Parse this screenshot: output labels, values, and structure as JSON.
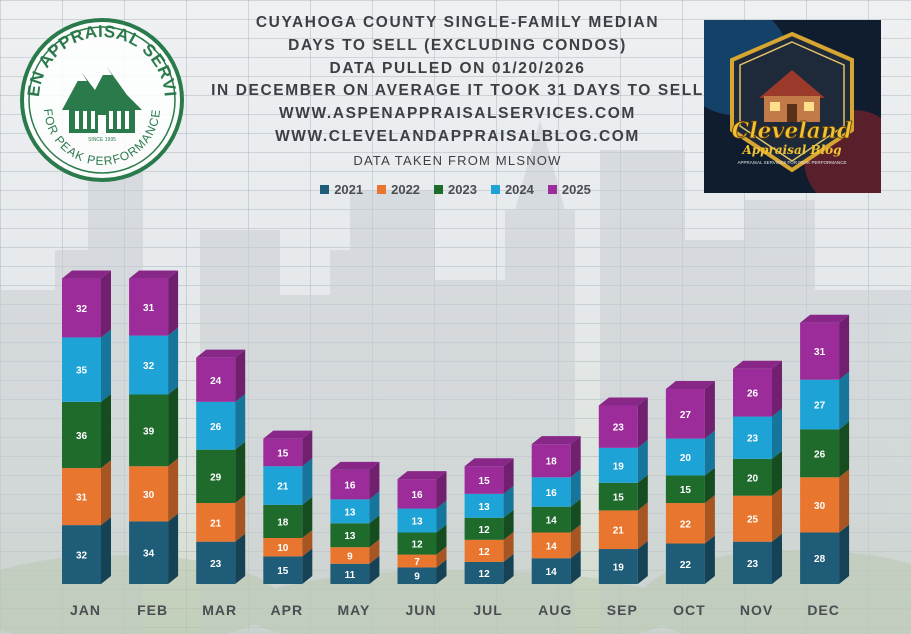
{
  "title_lines": [
    "CUYAHOGA COUNTY SINGLE-FAMILY MEDIAN",
    "DAYS TO SELL (EXCLUDING CONDOS)",
    "DATA PULLED ON 01/20/2026",
    "IN DECEMBER ON AVERAGE IT TOOK 31 DAYS TO SELL",
    "WWW.ASPENAPPRAISALSERVICES.COM",
    "WWW.CLEVELANDAPPRAISALBLOG.COM"
  ],
  "source_note": "DATA TAKEN FROM MLSNOW",
  "seal": {
    "top_text": "ASPEN APPRAISAL SERVICES",
    "bottom_text": "FOR PEAK PERFORMANCE",
    "small_text": "SINCE 1995"
  },
  "badge": {
    "line1": "Cleveland",
    "line2": "Appraisal Blog",
    "line3": "APPRAISAL SERVICES FOR PEAK PERFORMANCE"
  },
  "chart_data": {
    "type": "bar",
    "stacked": true,
    "categories": [
      "JAN",
      "FEB",
      "MAR",
      "APR",
      "MAY",
      "JUN",
      "JUL",
      "AUG",
      "SEP",
      "OCT",
      "NOV",
      "DEC"
    ],
    "series": [
      {
        "name": "2021",
        "color": "#1f5c78",
        "values": [
          32,
          34,
          23,
          15,
          11,
          9,
          12,
          14,
          19,
          22,
          23,
          28
        ]
      },
      {
        "name": "2022",
        "color": "#e8762f",
        "values": [
          31,
          30,
          21,
          10,
          9,
          7,
          12,
          14,
          21,
          22,
          25,
          30
        ]
      },
      {
        "name": "2023",
        "color": "#1f6b2c",
        "values": [
          36,
          39,
          29,
          18,
          13,
          12,
          12,
          14,
          15,
          15,
          20,
          26
        ]
      },
      {
        "name": "2024",
        "color": "#1ea3d6",
        "values": [
          35,
          32,
          26,
          21,
          13,
          13,
          13,
          16,
          19,
          20,
          23,
          27
        ]
      },
      {
        "name": "2025",
        "color": "#9b2c9a",
        "values": [
          32,
          31,
          24,
          15,
          16,
          16,
          15,
          18,
          23,
          27,
          26,
          31
        ]
      }
    ],
    "title": "CUYAHOGA COUNTY SINGLE-FAMILY MEDIAN DAYS TO SELL (EXCLUDING CONDOS)",
    "xlabel": "",
    "ylabel": "",
    "ylim": [
      0,
      180
    ],
    "legend_position": "top-center",
    "grid": true,
    "data_labels": true
  }
}
